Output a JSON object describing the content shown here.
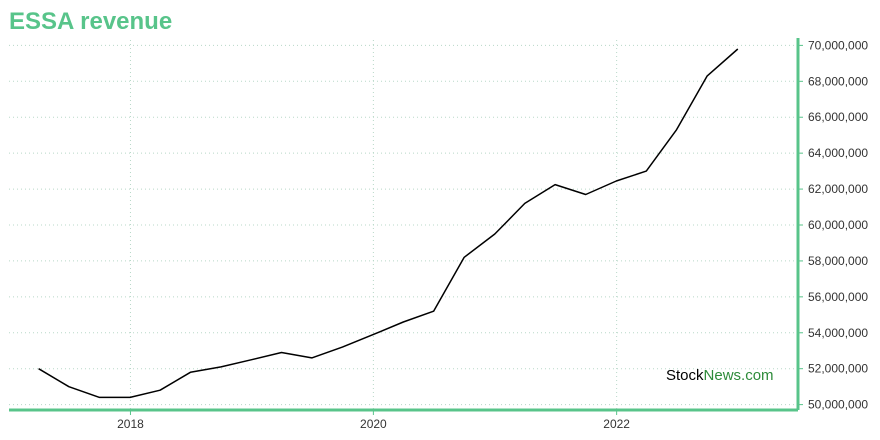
{
  "title": "ESSA revenue",
  "colors": {
    "accent": "#58c48a",
    "line": "#000000",
    "grid": "#b8d8c8",
    "watermark_dark": "#000000",
    "watermark_accent": "#2e8b3a"
  },
  "watermark": {
    "part1": "Stock",
    "part2": "News",
    "part3": ".com"
  },
  "chart_data": {
    "type": "line",
    "title": "ESSA revenue",
    "xlabel": "",
    "ylabel": "",
    "x": [
      "2017-03-31",
      "2017-06-30",
      "2017-09-30",
      "2017-12-31",
      "2018-03-31",
      "2018-06-30",
      "2018-09-30",
      "2018-12-31",
      "2019-03-31",
      "2019-06-30",
      "2019-09-30",
      "2019-12-31",
      "2020-03-31",
      "2020-06-30",
      "2020-09-30",
      "2020-12-31",
      "2021-03-31",
      "2021-06-30",
      "2021-09-30",
      "2021-12-31",
      "2022-03-31",
      "2022-06-30",
      "2022-09-30",
      "2022-12-31"
    ],
    "series": [
      {
        "values": [
          52000000,
          51000000,
          50400000,
          50400000,
          50800000,
          51800000,
          52100000,
          52500000,
          52900000,
          52600000,
          53200000,
          53900000,
          54600000,
          55200000,
          58200000,
          59500000,
          61200000,
          62250000,
          61700000,
          62450000,
          63000000,
          65300000,
          68300000,
          69800000
        ]
      }
    ],
    "ylim": [
      49700000,
      70300000
    ],
    "xlim": [
      "2017-01-01",
      "2023-06-30"
    ],
    "y_ticks": [
      50000000,
      52000000,
      54000000,
      56000000,
      58000000,
      60000000,
      62000000,
      64000000,
      66000000,
      68000000,
      70000000
    ],
    "y_tick_labels": [
      "50,000,000",
      "52,000,000",
      "54,000,000",
      "56,000,000",
      "58,000,000",
      "60,000,000",
      "62,000,000",
      "64,000,000",
      "66,000,000",
      "68,000,000",
      "70,000,000"
    ],
    "x_ticks": [
      "2018-01-01",
      "2020-01-01",
      "2022-01-01"
    ],
    "x_tick_labels": [
      "2018",
      "2020",
      "2022"
    ],
    "y_axis_side": "right",
    "grid": true
  }
}
